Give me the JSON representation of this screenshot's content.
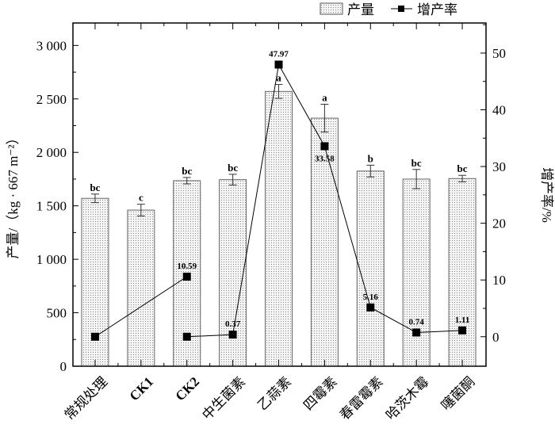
{
  "chart_data": {
    "type": "bar",
    "categories": [
      "常规处理",
      "CK1",
      "CK2",
      "中生菌素",
      "乙蒜素",
      "四霉素",
      "春雷霉素",
      "哈茨木霉",
      "噻菌酮"
    ],
    "series": [
      {
        "name": "产量",
        "type": "bar",
        "values": [
          1570,
          1460,
          1735,
          1745,
          2570,
          2320,
          1825,
          1750,
          1755
        ],
        "errors": [
          40,
          55,
          30,
          50,
          65,
          130,
          55,
          90,
          30
        ],
        "letters": [
          "bc",
          "c",
          "bc",
          "bc",
          "a",
          "a",
          "b",
          "bc",
          "bc"
        ]
      },
      {
        "name": "增产率",
        "type": "line",
        "axis": "right",
        "segments": [
          [
            {
              "i": 0,
              "v": 0
            },
            {
              "i": 2,
              "v": 10.59
            }
          ],
          [
            {
              "i": 2,
              "v": 0
            },
            {
              "i": 3,
              "v": 0.37
            },
            {
              "i": 4,
              "v": 47.97
            },
            {
              "i": 5,
              "v": 33.58
            },
            {
              "i": 6,
              "v": 5.16
            },
            {
              "i": 7,
              "v": 0.74
            },
            {
              "i": 8,
              "v": 1.11
            }
          ]
        ],
        "labels": [
          {
            "i": 2,
            "text": "10.59"
          },
          {
            "i": 3,
            "text": "0.37"
          },
          {
            "i": 4,
            "text": "47.97"
          },
          {
            "i": 5,
            "text": "33.58"
          },
          {
            "i": 6,
            "text": "5.16"
          },
          {
            "i": 7,
            "text": "0.74"
          },
          {
            "i": 8,
            "text": "1.11"
          }
        ]
      }
    ],
    "ylabel": "产量/（kg · 667 m⁻²）",
    "y2label": "增产率/%",
    "ylim": [
      0,
      3210
    ],
    "y2lim": [
      -5.2,
      55.3
    ],
    "yticks": [
      "0",
      "500",
      "1 000",
      "1 500",
      "2 000",
      "2 500",
      "3 000"
    ],
    "y2ticks": [
      "0",
      "10",
      "20",
      "30",
      "40",
      "50"
    ],
    "legend": {
      "position": "top-right",
      "items": [
        "产量",
        "增产率"
      ]
    },
    "grid": false
  }
}
